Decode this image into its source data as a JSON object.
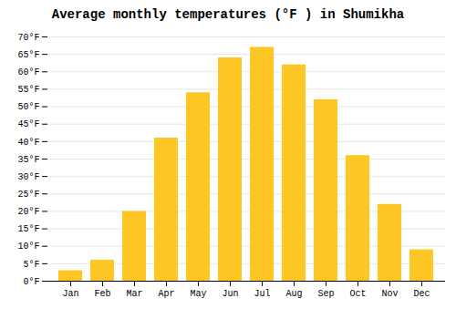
{
  "chart_data": {
    "type": "bar",
    "title": "Average monthly temperatures (°F ) in Shumikha",
    "categories": [
      "Jan",
      "Feb",
      "Mar",
      "Apr",
      "May",
      "Jun",
      "Jul",
      "Aug",
      "Sep",
      "Oct",
      "Nov",
      "Dec"
    ],
    "values": [
      3,
      6,
      20,
      41,
      54,
      64,
      67,
      62,
      52,
      36,
      22,
      9
    ],
    "color": "#FFC726",
    "ylim": [
      0,
      70
    ],
    "yticks": [
      {
        "value": 0,
        "label": "0°F"
      },
      {
        "value": 5,
        "label": "5°F"
      },
      {
        "value": 10,
        "label": "10°F"
      },
      {
        "value": 15,
        "label": "15°F"
      },
      {
        "value": 20,
        "label": "20°F"
      },
      {
        "value": 25,
        "label": "25°F"
      },
      {
        "value": 30,
        "label": "30°F"
      },
      {
        "value": 35,
        "label": "35°F"
      },
      {
        "value": 40,
        "label": "40°F"
      },
      {
        "value": 45,
        "label": "45°F"
      },
      {
        "value": 50,
        "label": "50°F"
      },
      {
        "value": 55,
        "label": "55°F"
      },
      {
        "value": 60,
        "label": "60°F"
      },
      {
        "value": 65,
        "label": "65°F"
      },
      {
        "value": 70,
        "label": "70°F"
      }
    ],
    "grid": true
  }
}
